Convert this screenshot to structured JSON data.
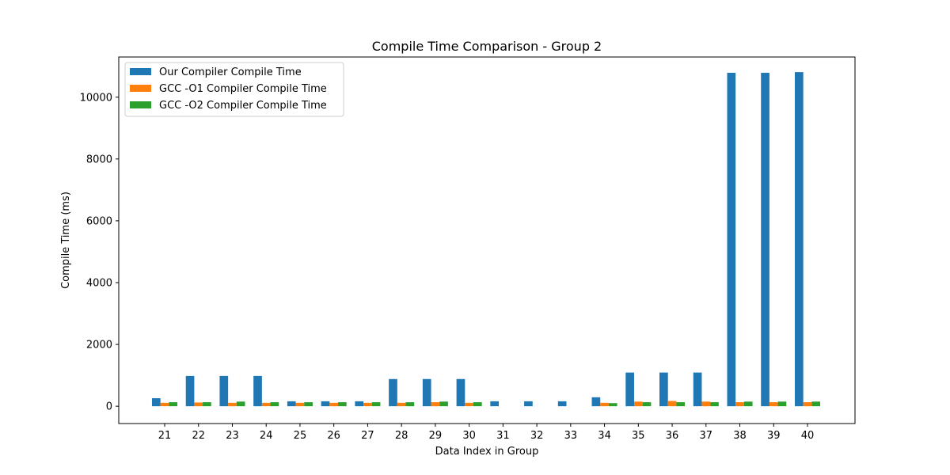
{
  "chart_data": {
    "type": "bar",
    "title": "Compile Time Comparison - Group 2",
    "xlabel": "Data Index in Group",
    "ylabel": "Compile Time (ms)",
    "categories": [
      "21",
      "22",
      "23",
      "24",
      "25",
      "26",
      "27",
      "28",
      "29",
      "30",
      "31",
      "32",
      "33",
      "34",
      "35",
      "36",
      "37",
      "38",
      "39",
      "40"
    ],
    "ylim": [
      -560,
      11300
    ],
    "yticks": [
      0,
      2000,
      4000,
      6000,
      8000,
      10000
    ],
    "legend_position": "top-left",
    "grid": false,
    "series": [
      {
        "name": "Our Compiler Compile Time",
        "color": "#1f77b4",
        "values": [
          260,
          980,
          980,
          980,
          160,
          160,
          160,
          880,
          880,
          880,
          160,
          160,
          160,
          290,
          1090,
          1090,
          1090,
          10790,
          10790,
          10810
        ]
      },
      {
        "name": "GCC -O1 Compiler Compile Time",
        "color": "#ff7f0e",
        "values": [
          110,
          120,
          110,
          110,
          110,
          110,
          110,
          110,
          130,
          110,
          0,
          0,
          0,
          110,
          150,
          170,
          150,
          130,
          130,
          130
        ]
      },
      {
        "name": "GCC -O2 Compiler Compile Time",
        "color": "#2ca02c",
        "values": [
          130,
          130,
          150,
          130,
          130,
          130,
          130,
          130,
          150,
          130,
          0,
          0,
          0,
          100,
          130,
          130,
          130,
          150,
          150,
          150
        ]
      }
    ]
  }
}
